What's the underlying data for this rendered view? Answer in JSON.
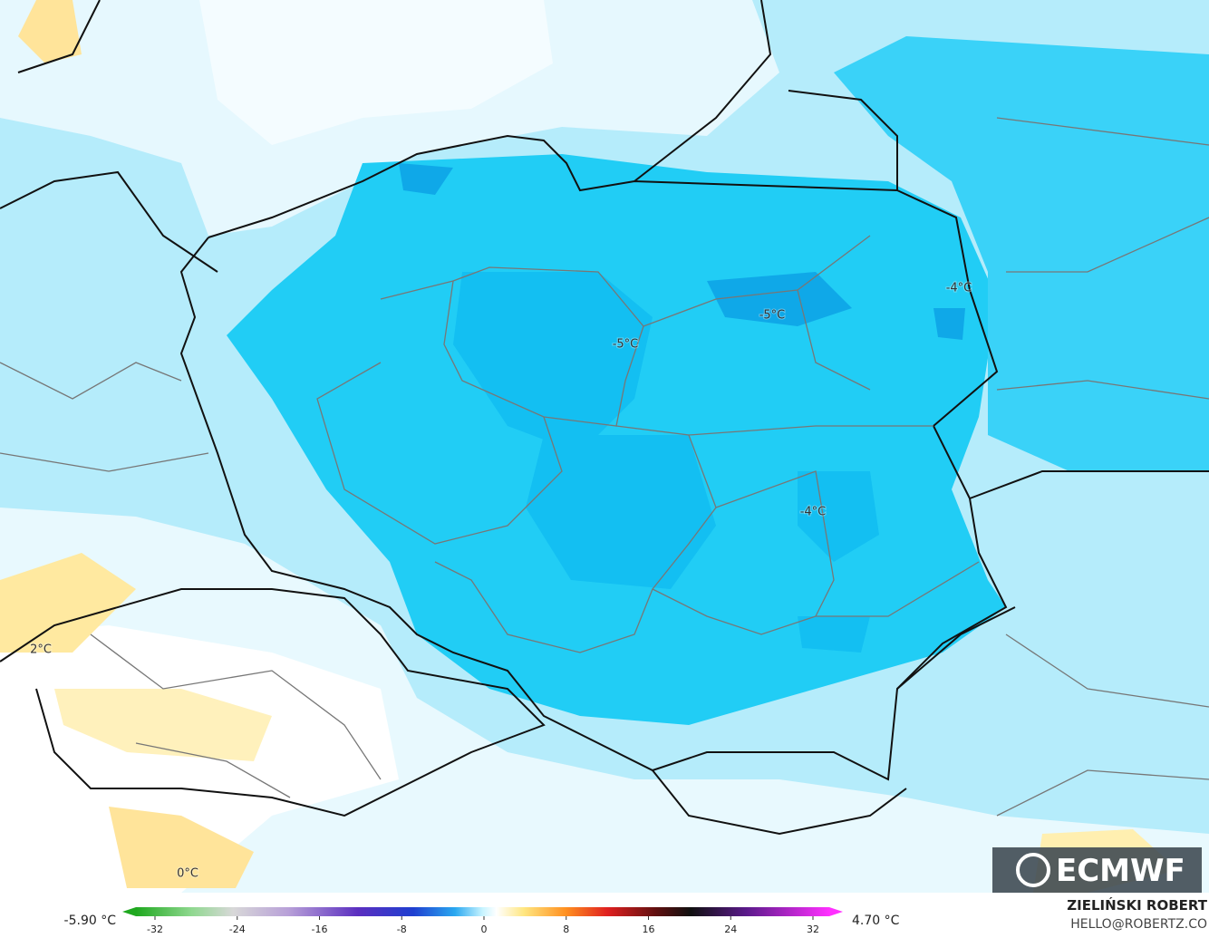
{
  "map": {
    "contour_labels": [
      "-5°C",
      "-5°C",
      "-4°C",
      "-4°C",
      "2°C",
      "0°C"
    ],
    "logo": "ECMWF"
  },
  "colorbar": {
    "min_label": "-5.90 °C",
    "max_label": "4.70 °C",
    "ticks": [
      -32,
      -24,
      -16,
      -8,
      0,
      8,
      16,
      24,
      32
    ]
  },
  "credit": {
    "name": "ZIELIŃSKI ROBERT",
    "email": "HELLO@ROBERTZ.CO"
  }
}
